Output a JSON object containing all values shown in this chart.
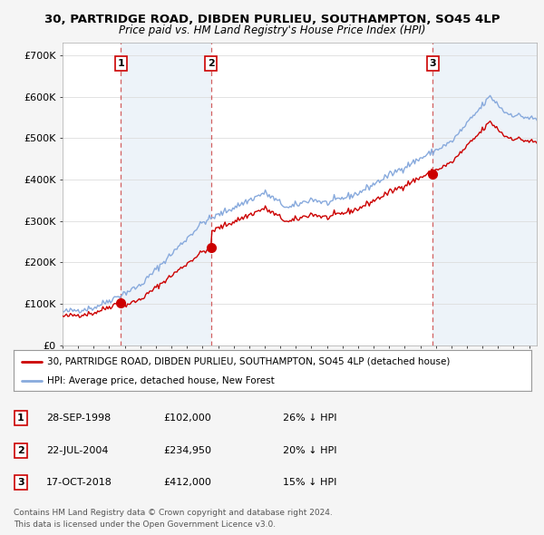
{
  "title": "30, PARTRIDGE ROAD, DIBDEN PURLIEU, SOUTHAMPTON, SO45 4LP",
  "subtitle": "Price paid vs. HM Land Registry's House Price Index (HPI)",
  "sale_dates_float": [
    1998.74,
    2004.55,
    2018.79
  ],
  "sale_prices": [
    102000,
    234950,
    412000
  ],
  "sale_labels": [
    "1",
    "2",
    "3"
  ],
  "sale_color": "#cc0000",
  "hpi_color": "#88aadd",
  "background_color": "#f5f5f5",
  "plot_bg_color": "#ffffff",
  "shade_color": "#dce8f5",
  "ylabel_values": [
    0,
    100000,
    200000,
    300000,
    400000,
    500000,
    600000,
    700000
  ],
  "ylabel_labels": [
    "£0",
    "£100K",
    "£200K",
    "£300K",
    "£400K",
    "£500K",
    "£600K",
    "£700K"
  ],
  "legend_line1": "30, PARTRIDGE ROAD, DIBDEN PURLIEU, SOUTHAMPTON, SO45 4LP (detached house)",
  "legend_line2": "HPI: Average price, detached house, New Forest",
  "table_data": [
    [
      "1",
      "28-SEP-1998",
      "£102,000",
      "26% ↓ HPI"
    ],
    [
      "2",
      "22-JUL-2004",
      "£234,950",
      "20% ↓ HPI"
    ],
    [
      "3",
      "17-OCT-2018",
      "£412,000",
      "15% ↓ HPI"
    ]
  ],
  "footnote1": "Contains HM Land Registry data © Crown copyright and database right 2024.",
  "footnote2": "This data is licensed under the Open Government Licence v3.0.",
  "xmin": 1995,
  "xmax": 2025.5,
  "ymin": 0,
  "ymax": 700000
}
